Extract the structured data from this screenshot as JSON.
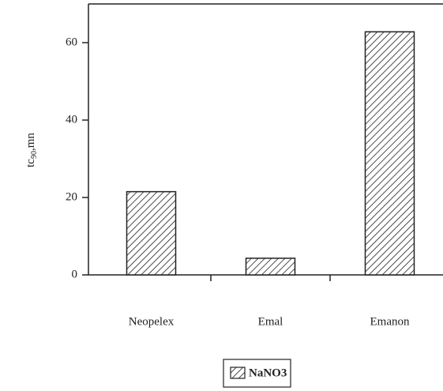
{
  "chart_data": {
    "type": "bar",
    "y_label": {
      "base": "tc",
      "subscript": "90",
      "suffix": ",mn"
    },
    "categories": [
      "Neopelex",
      "Emal",
      "Emanon"
    ],
    "series": [
      {
        "name": "NaNO3",
        "color": "#222222",
        "values": [
          21.5,
          4.3,
          62.8
        ]
      }
    ],
    "ylim": [
      0,
      70
    ],
    "yticks": [
      0,
      20,
      40,
      60
    ],
    "legend": "bottom"
  }
}
